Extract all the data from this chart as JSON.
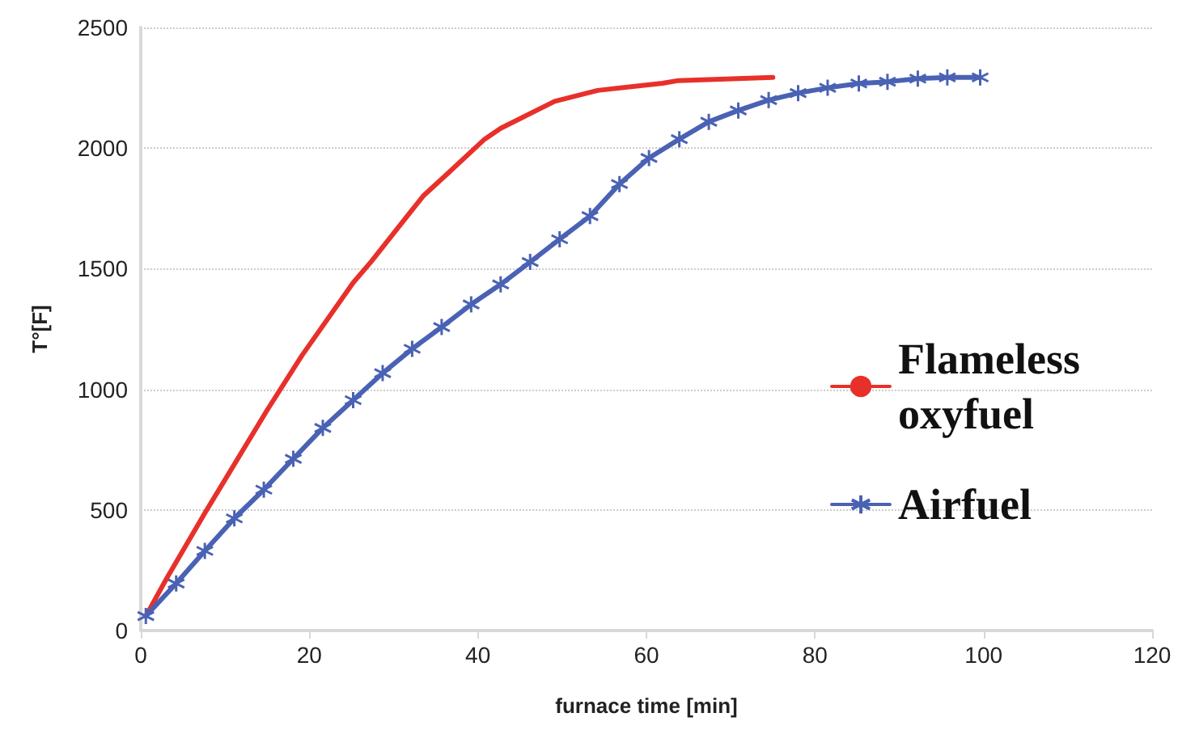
{
  "chart_data": {
    "type": "line",
    "xlabel": "furnace time [min]",
    "ylabel": "T°[F]",
    "xlim": [
      0,
      120
    ],
    "xticks": [
      0,
      20,
      40,
      60,
      80,
      100,
      120
    ],
    "ylim": [
      0,
      2500
    ],
    "yticks": [
      0,
      500,
      1000,
      1500,
      2000,
      2500
    ],
    "grid": "y",
    "legend": "right",
    "line_style": "solid",
    "series": [
      {
        "name": "Flameless oxyfuel",
        "color": "#e8302a",
        "marker": "none",
        "x": [
          0.6,
          3.1,
          7.6,
          15.0,
          19.1,
          25.2,
          27.4,
          33.5,
          36.3,
          40.8,
          42.7,
          49.1,
          54.2,
          61.9,
          63.8,
          75
        ],
        "values": [
          60,
          218,
          487,
          914,
          1139,
          1442,
          1532,
          1801,
          1891,
          2037,
          2082,
          2194,
          2239,
          2269,
          2280,
          2293
        ]
      },
      {
        "name": "Airfuel",
        "color": "#4a62b4",
        "marker": "cross",
        "x": [
          0.6,
          4.2,
          7.6,
          11.1,
          14.6,
          18.1,
          21.6,
          25.2,
          28.7,
          32.2,
          35.7,
          39.2,
          42.7,
          46.2,
          49.7,
          53.3,
          56.8,
          60.3,
          63.9,
          67.4,
          70.9,
          74.5,
          78.0,
          81.5,
          85.2,
          88.6,
          92.2,
          95.7,
          99.6
        ],
        "values": [
          60,
          195,
          330,
          465,
          584,
          712,
          840,
          955,
          1067,
          1168,
          1258,
          1352,
          1435,
          1528,
          1622,
          1718,
          1851,
          1959,
          2037,
          2109,
          2156,
          2199,
          2228,
          2250,
          2268,
          2275,
          2288,
          2293,
          2293
        ]
      }
    ]
  }
}
